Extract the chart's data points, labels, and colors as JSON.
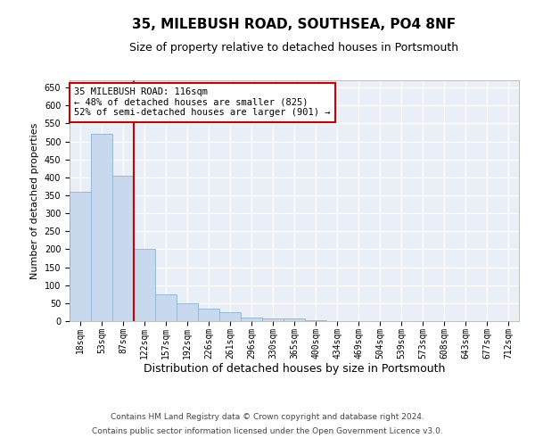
{
  "title1": "35, MILEBUSH ROAD, SOUTHSEA, PO4 8NF",
  "title2": "Size of property relative to detached houses in Portsmouth",
  "xlabel": "Distribution of detached houses by size in Portsmouth",
  "ylabel": "Number of detached properties",
  "bar_labels": [
    "18sqm",
    "53sqm",
    "87sqm",
    "122sqm",
    "157sqm",
    "192sqm",
    "226sqm",
    "261sqm",
    "296sqm",
    "330sqm",
    "365sqm",
    "400sqm",
    "434sqm",
    "469sqm",
    "504sqm",
    "539sqm",
    "573sqm",
    "608sqm",
    "643sqm",
    "677sqm",
    "712sqm"
  ],
  "bar_values": [
    360,
    522,
    405,
    200,
    75,
    50,
    35,
    25,
    10,
    8,
    8,
    2,
    1,
    1,
    1,
    0.5,
    0.5,
    0.5,
    0.5,
    0.5,
    0.5
  ],
  "bar_color": "#c9d9ed",
  "bar_edge_color": "#8ab4d4",
  "vline_x": 2.5,
  "vline_color": "#cc0000",
  "annotation_text": "35 MILEBUSH ROAD: 116sqm\n← 48% of detached houses are smaller (825)\n52% of semi-detached houses are larger (901) →",
  "annotation_box_color": "#ffffff",
  "annotation_box_edge": "#cc0000",
  "ylim": [
    0,
    670
  ],
  "yticks": [
    0,
    50,
    100,
    150,
    200,
    250,
    300,
    350,
    400,
    450,
    500,
    550,
    600,
    650
  ],
  "plot_bg_color": "#eaeff7",
  "footer1": "Contains HM Land Registry data © Crown copyright and database right 2024.",
  "footer2": "Contains public sector information licensed under the Open Government Licence v3.0.",
  "title1_fontsize": 11,
  "title2_fontsize": 9,
  "xlabel_fontsize": 9,
  "ylabel_fontsize": 8,
  "tick_fontsize": 7,
  "annotation_fontsize": 7.5,
  "footer_fontsize": 6.5
}
